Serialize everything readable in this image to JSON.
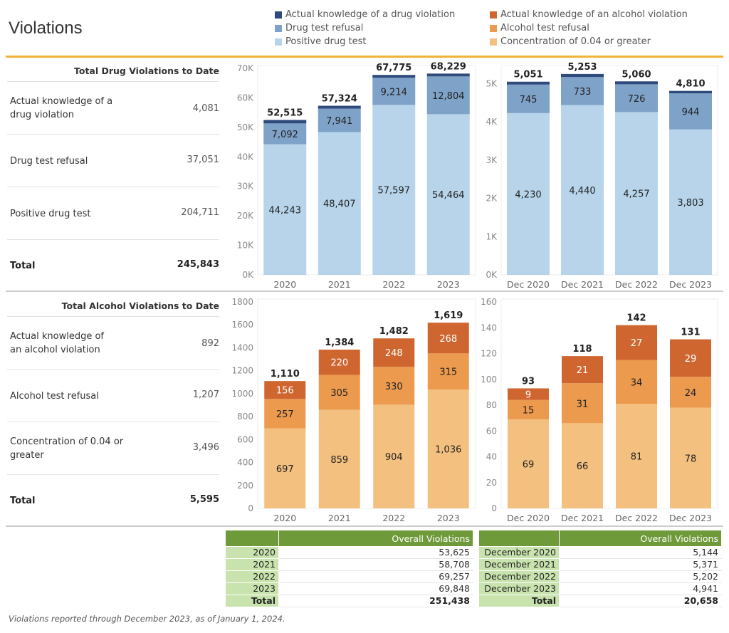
{
  "title": "Violations",
  "colors": {
    "accent_rule": "#f2b233",
    "drug_knowledge": "#2f4b7c",
    "drug_refusal": "#7fa2c9",
    "drug_positive": "#b7d4ea",
    "alc_knowledge": "#cf6630",
    "alc_refusal": "#eb9a4e",
    "alc_concentration": "#f4c07f",
    "table_header": "#6f9a3a",
    "table_key": "#c8e3ad"
  },
  "legend": [
    {
      "label": "Actual knowledge of a drug violation",
      "color": "#2f4b7c"
    },
    {
      "label": "Actual knowledge of an alcohol violation",
      "color": "#cf6630"
    },
    {
      "label": "Drug test refusal",
      "color": "#7fa2c9"
    },
    {
      "label": "Alcohol test refusal",
      "color": "#eb9a4e"
    },
    {
      "label": "Positive drug test",
      "color": "#b7d4ea"
    },
    {
      "label": "Concentration of 0.04 or greater",
      "color": "#f4c07f"
    }
  ],
  "drug_summary": {
    "header": "Total Drug Violations to Date",
    "rows": [
      {
        "label": "Actual knowledge of a drug violation",
        "value": "4,081"
      },
      {
        "label": "Drug test refusal",
        "value": "37,051"
      },
      {
        "label": "Positive drug test",
        "value": "204,711"
      }
    ],
    "total_label": "Total",
    "total_value": "245,843"
  },
  "alcohol_summary": {
    "header": "Total Alcohol Violations to Date",
    "rows": [
      {
        "label": "Actual knowledge of an alcohol violation",
        "value": "892"
      },
      {
        "label": "Alcohol test refusal",
        "value": "1,207"
      },
      {
        "label": "Concentration of 0.04 or greater",
        "value": "3,496"
      }
    ],
    "total_label": "Total",
    "total_value": "5,595"
  },
  "chart_data": [
    {
      "id": "drug-yearly",
      "type": "bar",
      "stacked": true,
      "title": "",
      "categories": [
        "2020",
        "2021",
        "2022",
        "2023"
      ],
      "ylim": [
        0,
        70000
      ],
      "yticks": [
        0,
        10000,
        20000,
        30000,
        40000,
        50000,
        60000,
        70000
      ],
      "ytick_labels": [
        "0K",
        "10K",
        "20K",
        "30K",
        "40K",
        "50K",
        "60K",
        "70K"
      ],
      "series": [
        {
          "name": "Positive drug test",
          "color": "#b7d4ea",
          "values": [
            44243,
            48407,
            57597,
            54464
          ],
          "labels": [
            "44,243",
            "48,407",
            "57,597",
            "54,464"
          ]
        },
        {
          "name": "Drug test refusal",
          "color": "#7fa2c9",
          "values": [
            7092,
            7941,
            9214,
            12804
          ],
          "labels": [
            "7,092",
            "7,941",
            "9,214",
            "12,804"
          ]
        },
        {
          "name": "Actual knowledge of a drug violation",
          "color": "#2f4b7c",
          "values": [
            1180,
            976,
            964,
            961
          ],
          "labels": null
        }
      ],
      "totals": [
        "52,515",
        "57,324",
        "67,775",
        "68,229"
      ]
    },
    {
      "id": "drug-december",
      "type": "bar",
      "stacked": true,
      "title": "",
      "categories": [
        "Dec 2020",
        "Dec 2021",
        "Dec 2022",
        "Dec 2023"
      ],
      "ylim": [
        0,
        5400
      ],
      "yticks": [
        0,
        1000,
        2000,
        3000,
        4000,
        5000
      ],
      "ytick_labels": [
        "0K",
        "1K",
        "2K",
        "3K",
        "4K",
        "5K"
      ],
      "series": [
        {
          "name": "Positive drug test",
          "color": "#b7d4ea",
          "values": [
            4230,
            4440,
            4257,
            3803
          ],
          "labels": [
            "4,230",
            "4,440",
            "4,257",
            "3,803"
          ]
        },
        {
          "name": "Drug test refusal",
          "color": "#7fa2c9",
          "values": [
            745,
            733,
            726,
            944
          ],
          "labels": [
            "745",
            "733",
            "726",
            "944"
          ]
        },
        {
          "name": "Actual knowledge of a drug violation",
          "color": "#2f4b7c",
          "values": [
            76,
            80,
            77,
            63
          ],
          "labels": null
        }
      ],
      "totals": [
        "5,051",
        "5,253",
        "5,060",
        "4,810"
      ]
    },
    {
      "id": "alcohol-yearly",
      "type": "bar",
      "stacked": true,
      "title": "",
      "categories": [
        "2020",
        "2021",
        "2022",
        "2023"
      ],
      "ylim": [
        0,
        1800
      ],
      "yticks": [
        0,
        200,
        400,
        600,
        800,
        1000,
        1200,
        1400,
        1600,
        1800
      ],
      "ytick_labels": [
        "0",
        "200",
        "400",
        "600",
        "800",
        "1000",
        "1200",
        "1400",
        "1600",
        "1800"
      ],
      "series": [
        {
          "name": "Concentration of 0.04 or greater",
          "color": "#f4c07f",
          "values": [
            697,
            859,
            904,
            1036
          ],
          "labels": [
            "697",
            "859",
            "904",
            "1,036"
          ]
        },
        {
          "name": "Alcohol test refusal",
          "color": "#eb9a4e",
          "values": [
            257,
            305,
            330,
            315
          ],
          "labels": [
            "257",
            "305",
            "330",
            "315"
          ]
        },
        {
          "name": "Actual knowledge of an alcohol violation",
          "color": "#cf6630",
          "values": [
            156,
            220,
            248,
            268
          ],
          "labels": [
            "156",
            "220",
            "248",
            "268"
          ]
        }
      ],
      "totals": [
        "1,110",
        "1,384",
        "1,482",
        "1,619"
      ]
    },
    {
      "id": "alcohol-december",
      "type": "bar",
      "stacked": true,
      "title": "",
      "categories": [
        "Dec 2020",
        "Dec 2021",
        "Dec 2022",
        "Dec 2023"
      ],
      "ylim": [
        0,
        160
      ],
      "yticks": [
        0,
        20,
        40,
        60,
        80,
        100,
        120,
        140,
        160
      ],
      "ytick_labels": [
        "0",
        "20",
        "40",
        "60",
        "80",
        "100",
        "120",
        "140",
        "160"
      ],
      "series": [
        {
          "name": "Concentration of 0.04 or greater",
          "color": "#f4c07f",
          "values": [
            69,
            66,
            81,
            78
          ],
          "labels": [
            "69",
            "66",
            "81",
            "78"
          ]
        },
        {
          "name": "Alcohol test refusal",
          "color": "#eb9a4e",
          "values": [
            15,
            31,
            34,
            24
          ],
          "labels": [
            "15",
            "31",
            "34",
            "24"
          ]
        },
        {
          "name": "Actual knowledge of an alcohol violation",
          "color": "#cf6630",
          "values": [
            9,
            21,
            27,
            29
          ],
          "labels": [
            "9",
            "21",
            "27",
            "29"
          ]
        }
      ],
      "totals": [
        "93",
        "118",
        "142",
        "131"
      ]
    },
    {
      "id": "overall-yearly",
      "type": "table",
      "header": [
        "",
        "Overall Violations"
      ],
      "rows": [
        [
          "2020",
          "53,625"
        ],
        [
          "2021",
          "58,708"
        ],
        [
          "2022",
          "69,257"
        ],
        [
          "2023",
          "69,848"
        ]
      ],
      "total": [
        "Total",
        "251,438"
      ]
    },
    {
      "id": "overall-december",
      "type": "table",
      "header": [
        "",
        "Overall Violations"
      ],
      "rows": [
        [
          "December 2020",
          "5,144"
        ],
        [
          "December 2021",
          "5,371"
        ],
        [
          "December 2022",
          "5,202"
        ],
        [
          "December 2023",
          "4,941"
        ]
      ],
      "total": [
        "Total",
        "20,658"
      ]
    }
  ],
  "footnote": "Violations reported through December 2023, as of January 1, 2024."
}
